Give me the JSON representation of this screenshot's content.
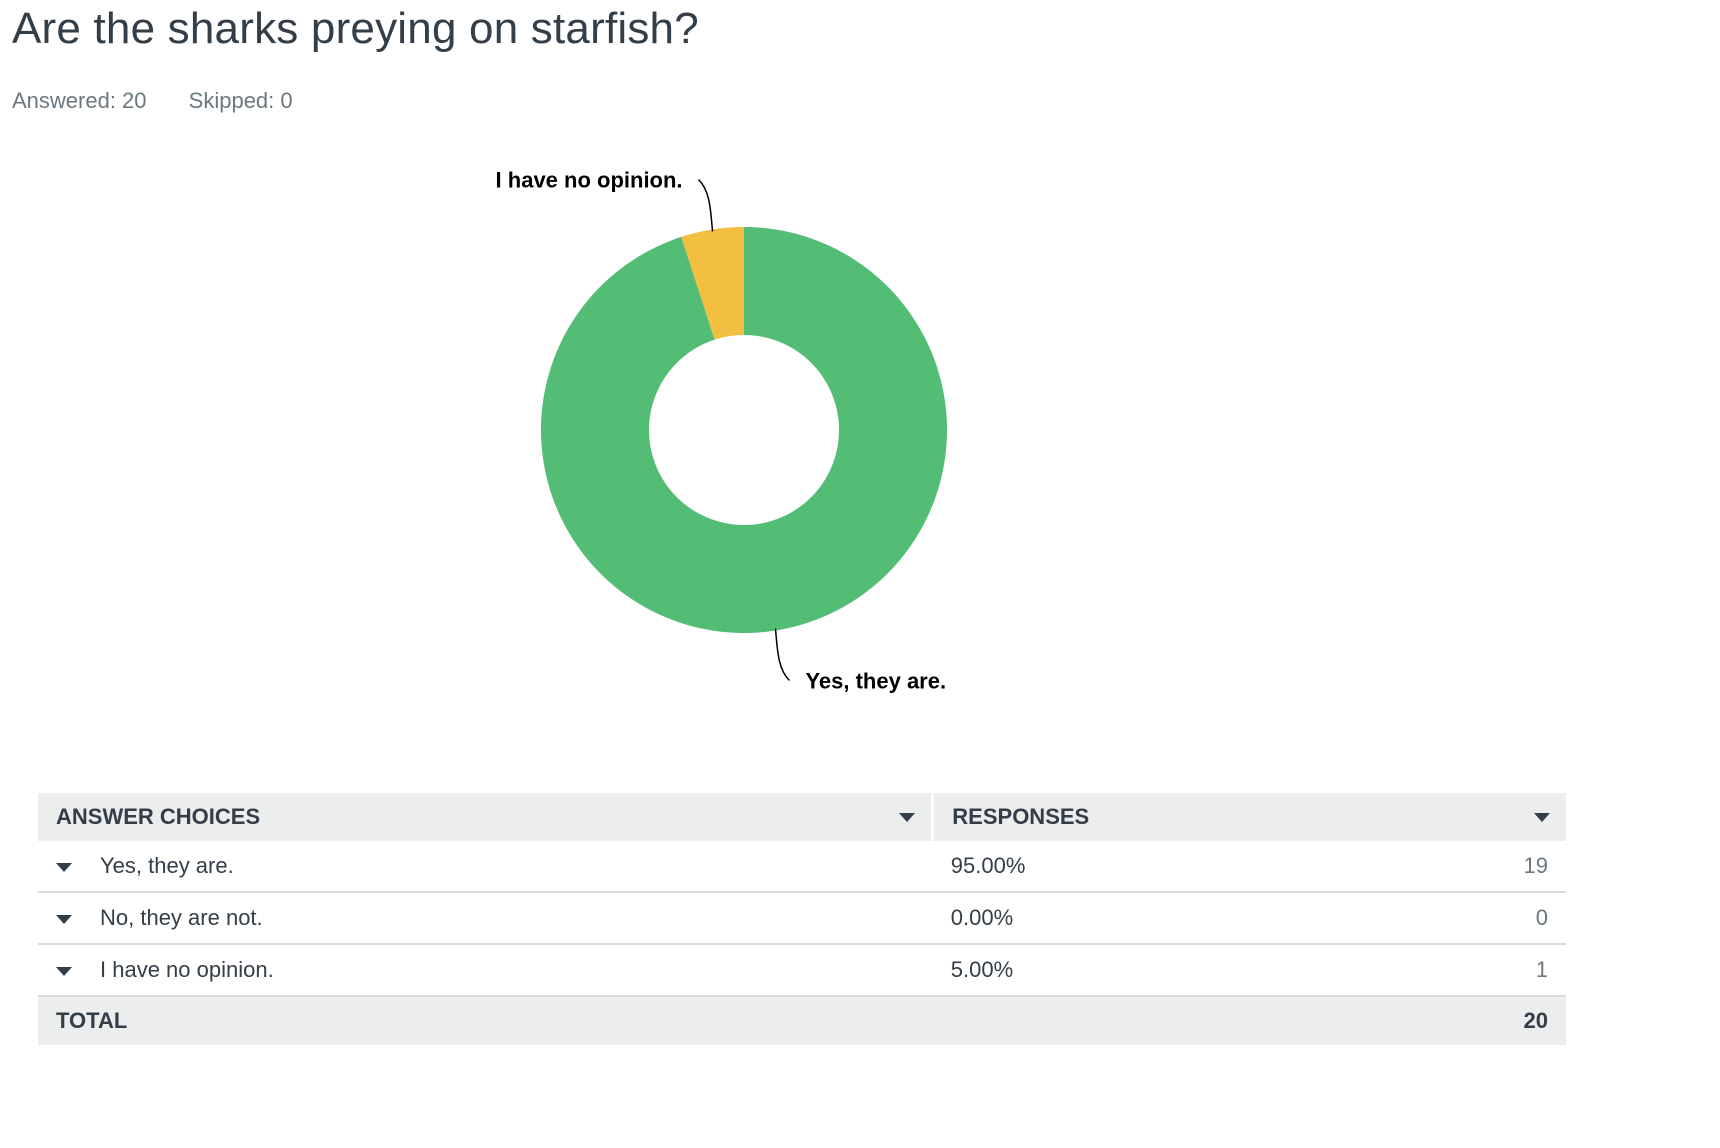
{
  "question": {
    "title": "Are the sharks preying on starfish?",
    "answered_label": "Answered: 20",
    "skipped_label": "Skipped: 0"
  },
  "table": {
    "header_choices": "ANSWER CHOICES",
    "header_responses": "RESPONSES",
    "rows": [
      {
        "choice": "Yes, they are.",
        "percent": "95.00%",
        "count": "19"
      },
      {
        "choice": "No, they are not.",
        "percent": "0.00%",
        "count": "0"
      },
      {
        "choice": "I have no opinion.",
        "percent": "5.00%",
        "count": "1"
      }
    ],
    "total_label": "TOTAL",
    "total_count": "20"
  },
  "chart_data": {
    "type": "pie",
    "donut": true,
    "categories": [
      "Yes, they are.",
      "No, they are not.",
      "I have no opinion."
    ],
    "values": [
      19,
      0,
      1
    ],
    "colors": [
      "#53bc75",
      "#3e9dd6",
      "#f2bf41"
    ],
    "labeled_slices": [
      "I have no opinion.",
      "Yes, they are."
    ]
  }
}
